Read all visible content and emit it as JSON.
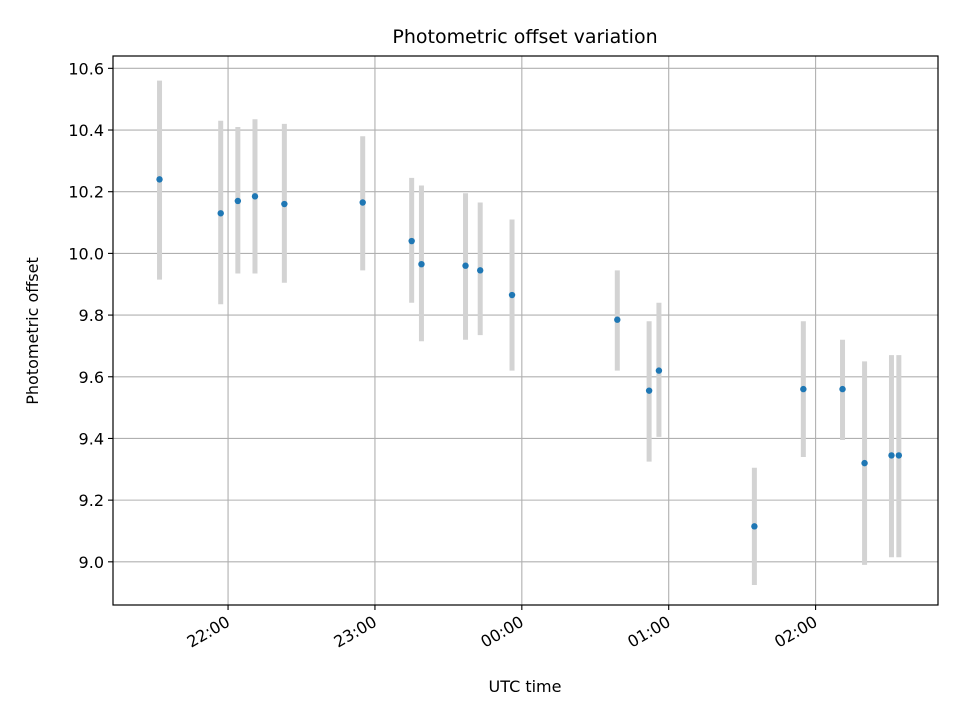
{
  "chart_data": {
    "type": "scatter",
    "title": "Photometric offset variation",
    "xlabel": "UTC time",
    "ylabel": "Photometric offset",
    "x_tick_labels": [
      "22:00",
      "23:00",
      "00:00",
      "01:00",
      "02:00"
    ],
    "x_tick_minutes": [
      0,
      60,
      120,
      180,
      240
    ],
    "xlim_minutes": [
      -47,
      290
    ],
    "y_ticks": [
      9.0,
      9.2,
      9.4,
      9.6,
      9.8,
      10.0,
      10.2,
      10.4,
      10.6
    ],
    "ylim": [
      8.86,
      10.64
    ],
    "grid": true,
    "colors": {
      "points": "#1f77b4",
      "errorbars": "#d3d3d3",
      "grid": "#b0b0b0"
    },
    "points": [
      {
        "time": "21:32",
        "value": 10.24,
        "low": 9.915,
        "high": 10.56
      },
      {
        "time": "21:57",
        "value": 10.13,
        "low": 9.835,
        "high": 10.43
      },
      {
        "time": "22:04",
        "value": 10.17,
        "low": 9.935,
        "high": 10.41
      },
      {
        "time": "22:11",
        "value": 10.185,
        "low": 9.935,
        "high": 10.435
      },
      {
        "time": "22:23",
        "value": 10.16,
        "low": 9.905,
        "high": 10.42
      },
      {
        "time": "22:55",
        "value": 10.165,
        "low": 9.945,
        "high": 10.38
      },
      {
        "time": "23:15",
        "value": 10.04,
        "low": 9.84,
        "high": 10.245
      },
      {
        "time": "23:19",
        "value": 9.965,
        "low": 9.715,
        "high": 10.22
      },
      {
        "time": "23:37",
        "value": 9.96,
        "low": 9.72,
        "high": 10.195
      },
      {
        "time": "23:43",
        "value": 9.945,
        "low": 9.735,
        "high": 10.165
      },
      {
        "time": "23:56",
        "value": 9.865,
        "low": 9.62,
        "high": 10.11
      },
      {
        "time": "00:39",
        "value": 9.785,
        "low": 9.62,
        "high": 9.945
      },
      {
        "time": "00:52",
        "value": 9.555,
        "low": 9.325,
        "high": 9.78
      },
      {
        "time": "00:56",
        "value": 9.62,
        "low": 9.405,
        "high": 9.84
      },
      {
        "time": "01:35",
        "value": 9.115,
        "low": 8.925,
        "high": 9.305
      },
      {
        "time": "01:55",
        "value": 9.56,
        "low": 9.34,
        "high": 9.78
      },
      {
        "time": "02:11",
        "value": 9.56,
        "low": 9.395,
        "high": 9.72
      },
      {
        "time": "02:20",
        "value": 9.32,
        "low": 8.99,
        "high": 9.65
      },
      {
        "time": "02:31",
        "value": 9.345,
        "low": 9.015,
        "high": 9.67
      },
      {
        "time": "02:34",
        "value": 9.345,
        "low": 9.015,
        "high": 9.67
      }
    ]
  }
}
